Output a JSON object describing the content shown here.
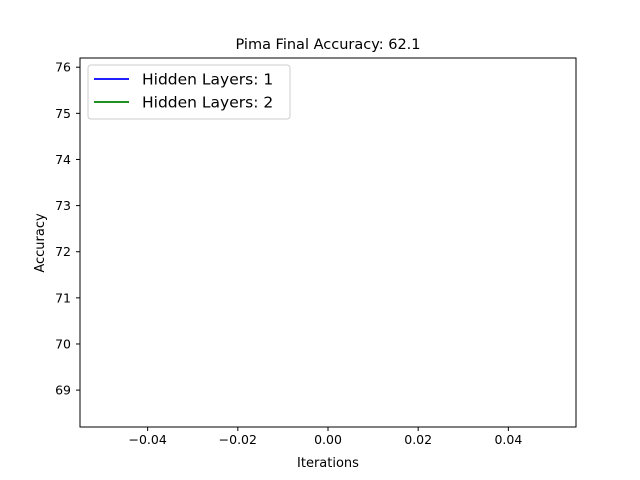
{
  "chart_data": {
    "type": "line",
    "title": "Pima Final Accuracy: 62.1",
    "xlabel": "Iterations",
    "ylabel": "Accuracy",
    "xlim": [
      -0.055,
      0.055
    ],
    "ylim": [
      68.2,
      76.2
    ],
    "x_ticks": [
      {
        "value": -0.04,
        "label": "−0.04"
      },
      {
        "value": -0.02,
        "label": "−0.02"
      },
      {
        "value": 0.0,
        "label": "0.00"
      },
      {
        "value": 0.02,
        "label": "0.02"
      },
      {
        "value": 0.04,
        "label": "0.04"
      }
    ],
    "y_ticks": [
      {
        "value": 69,
        "label": "69"
      },
      {
        "value": 70,
        "label": "70"
      },
      {
        "value": 71,
        "label": "71"
      },
      {
        "value": 72,
        "label": "72"
      },
      {
        "value": 73,
        "label": "73"
      },
      {
        "value": 74,
        "label": "74"
      },
      {
        "value": 75,
        "label": "75"
      },
      {
        "value": 76,
        "label": "76"
      }
    ],
    "grid": false,
    "legend_position": "top-left",
    "series": [
      {
        "name": "Hidden Layers: 1",
        "color": "#0000ff",
        "x": [],
        "y": []
      },
      {
        "name": "Hidden Layers: 2",
        "color": "#008000",
        "x": [],
        "y": []
      }
    ]
  }
}
